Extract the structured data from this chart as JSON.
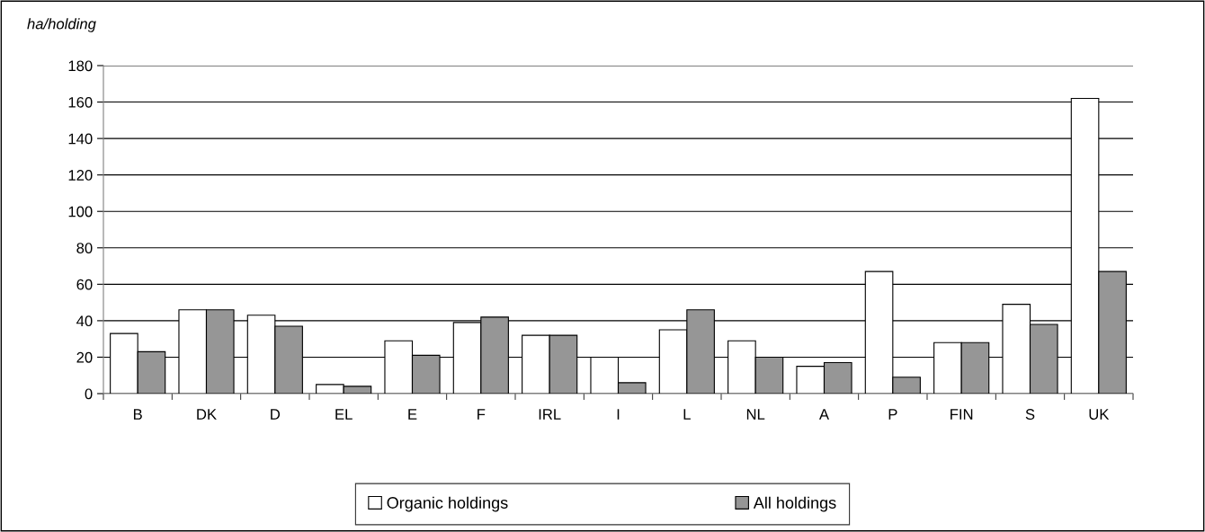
{
  "chart_data": {
    "type": "bar",
    "ylabel": "ha/holding",
    "categories": [
      "B",
      "DK",
      "D",
      "EL",
      "E",
      "F",
      "IRL",
      "I",
      "L",
      "NL",
      "A",
      "P",
      "FIN",
      "S",
      "UK"
    ],
    "series": [
      {
        "name": "Organic holdings",
        "color": "#ffffff",
        "values": [
          33,
          46,
          43,
          5,
          29,
          39,
          32,
          20,
          35,
          29,
          15,
          67,
          28,
          49,
          162
        ]
      },
      {
        "name": "All holdings",
        "color": "#969696",
        "values": [
          23,
          46,
          37,
          4,
          21,
          42,
          32,
          6,
          46,
          20,
          17,
          9,
          28,
          38,
          67
        ]
      }
    ],
    "ylim": [
      0,
      180
    ],
    "yticks": [
      0,
      20,
      40,
      60,
      80,
      100,
      120,
      140,
      160,
      180
    ],
    "grid": "y",
    "legend": "bottom"
  }
}
